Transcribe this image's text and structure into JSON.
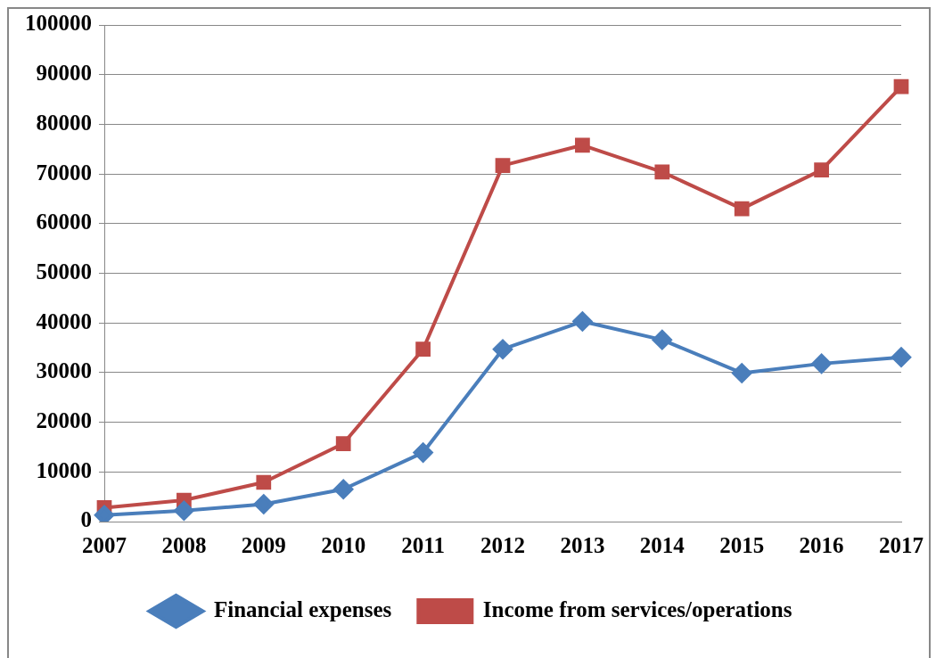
{
  "chart_data": {
    "type": "line",
    "categories": [
      "2007",
      "2008",
      "2009",
      "2010",
      "2011",
      "2012",
      "2013",
      "2014",
      "2015",
      "2016",
      "2017"
    ],
    "series": [
      {
        "name": "Financial expenses",
        "color": "#4a7ebb",
        "marker": "diamond",
        "values": [
          1300,
          2200,
          3500,
          6500,
          13900,
          34700,
          40300,
          36600,
          29900,
          31800,
          33100
        ]
      },
      {
        "name": "Income from services/operations",
        "color": "#be4b48",
        "marker": "square",
        "values": [
          2800,
          4300,
          7900,
          15700,
          34700,
          71700,
          75800,
          70400,
          63000,
          70800,
          87600
        ]
      }
    ],
    "ylim": [
      0,
      100000
    ],
    "yticks": [
      0,
      10000,
      20000,
      30000,
      40000,
      50000,
      60000,
      70000,
      80000,
      90000,
      100000
    ],
    "grid": "y",
    "legend": "bottom",
    "line_style": "solid"
  }
}
